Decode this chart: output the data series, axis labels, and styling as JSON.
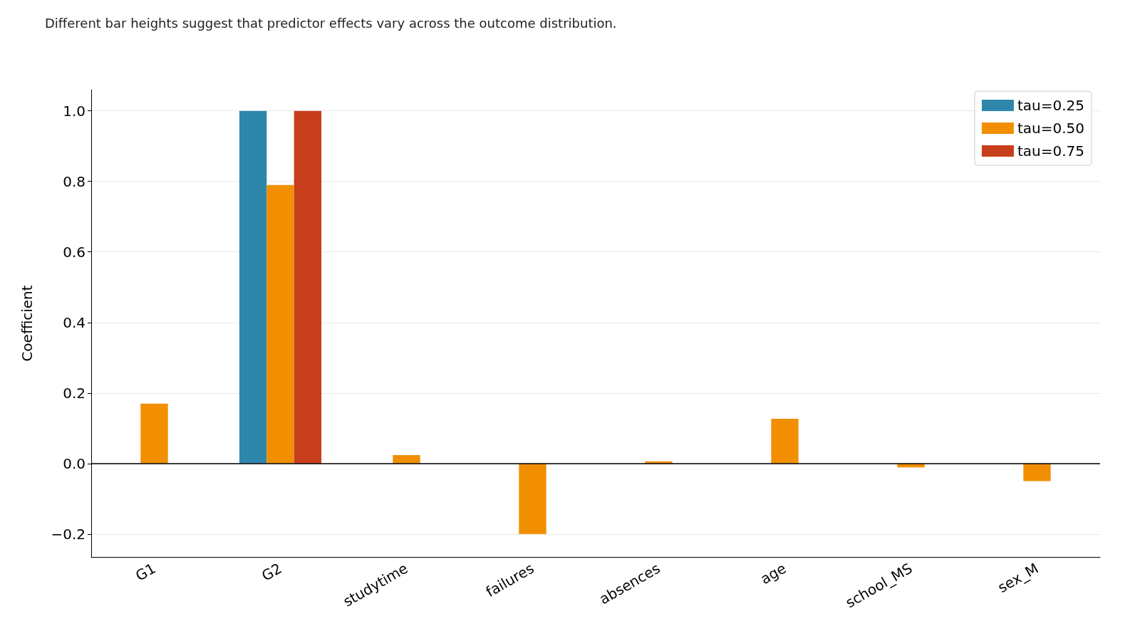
{
  "chart_data": {
    "type": "bar",
    "subtitle": "Different bar heights suggest that predictor effects vary across the outcome distribution.",
    "ylabel": "Coefficient",
    "categories": [
      "G1",
      "G2",
      "studytime",
      "failures",
      "absences",
      "age",
      "school_MS",
      "sex_M"
    ],
    "series": [
      {
        "name": "tau=0.25",
        "color": "#2e86ab",
        "values": [
          null,
          1.0,
          null,
          null,
          null,
          null,
          null,
          null
        ]
      },
      {
        "name": "tau=0.50",
        "color": "#f18f01",
        "values": [
          0.17,
          0.79,
          0.024,
          -0.2,
          0.006,
          0.127,
          -0.011,
          -0.05
        ]
      },
      {
        "name": "tau=0.75",
        "color": "#c73e1d",
        "values": [
          null,
          1.0,
          null,
          null,
          null,
          null,
          null,
          null
        ]
      }
    ],
    "ylim": [
      -0.265,
      1.06
    ],
    "yticks": [
      {
        "value": -0.2,
        "label": "−0.2"
      },
      {
        "value": 0,
        "label": "0.0"
      },
      {
        "value": 0.2,
        "label": "0.2"
      },
      {
        "value": 0.4,
        "label": "0.4"
      },
      {
        "value": 0.6,
        "label": "0.6"
      },
      {
        "value": 0.8,
        "label": "0.8"
      },
      {
        "value": 1,
        "label": "1.0"
      }
    ],
    "ref_lines": [
      {
        "axis": "y",
        "value": 0,
        "color": "#000000"
      }
    ],
    "grid": "y",
    "legend": "top right"
  }
}
